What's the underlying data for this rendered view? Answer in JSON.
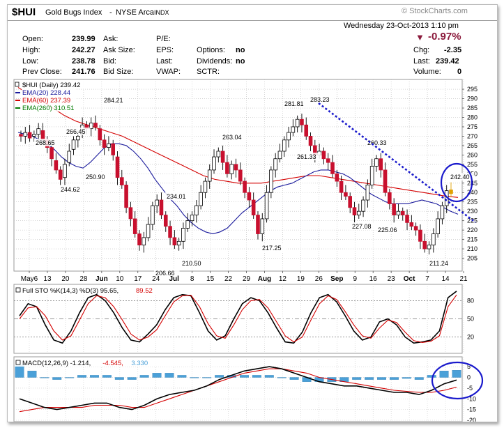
{
  "header": {
    "symbol": "$HUI",
    "name": "Gold Bugs Index",
    "exchange": "NYSE Arca",
    "type": "INDX",
    "watermark": "© StockCharts.com",
    "datetime": "Wednesday  23-Oct-2013  1:10 pm",
    "change_pct": "-0.97%",
    "quote": {
      "open_label": "Open:",
      "open": "239.99",
      "high_label": "High:",
      "high": "242.27",
      "low_label": "Low:",
      "low": "238.78",
      "prev_label": "Prev Close:",
      "prev": "241.76",
      "ask_label": "Ask:",
      "asksize_label": "Ask Size:",
      "bid_label": "Bid:",
      "bidsize_label": "Bid Size:",
      "pe_label": "P/E:",
      "eps_label": "EPS:",
      "last_label": "Last:",
      "vwap_label": "VWAP:",
      "options_label": "Options:",
      "options": "no",
      "dividends_label": "Dividends:",
      "dividends": "no",
      "sctr_label": "SCTR:",
      "chg_label": "Chg:",
      "chg": "-2.35",
      "last2_label": "Last:",
      "last2": "239.42",
      "volume_label": "Volume:",
      "volume": "0"
    },
    "colors": {
      "down": "#8b1a3c",
      "red": "#d40000",
      "blue": "#1a1a9c",
      "green": "#007a00",
      "grey": "#555555"
    }
  },
  "chart_data": [
    {
      "type": "candlestick",
      "legend": [
        {
          "text": "$HUI (Daily) 239.42",
          "color": "#000000"
        },
        {
          "text": "EMA(20) 228.44",
          "color": "#1a1a9c"
        },
        {
          "text": "EMA(60) 237.39",
          "color": "#d40000"
        },
        {
          "text": "EMA(260) 310.51",
          "color": "#007a00"
        }
      ],
      "ylim": [
        200,
        298
      ],
      "yticks": [
        205,
        210,
        215,
        220,
        225,
        230,
        235,
        240,
        245,
        250,
        255,
        260,
        265,
        270,
        275,
        280,
        285,
        290,
        295
      ],
      "xticks": [
        "May6",
        "13",
        "20",
        "28",
        "Jun",
        "10",
        "17",
        "24",
        "Jul",
        "8",
        "15",
        "22",
        "29",
        "Aug",
        "12",
        "19",
        "26",
        "Sep",
        "9",
        "16",
        "23",
        "Oct",
        "7",
        "14",
        "21"
      ],
      "xtick_bold": [
        "Jun",
        "Jul",
        "Aug",
        "Sep",
        "Oct"
      ],
      "close": [
        270,
        272,
        269,
        271,
        274,
        268,
        264,
        258,
        252,
        247,
        255,
        262,
        268,
        270,
        276,
        274,
        277,
        275,
        268,
        264,
        266,
        260,
        248,
        244,
        232,
        226,
        218,
        212,
        216,
        223,
        233,
        236,
        228,
        222,
        216,
        212,
        214,
        221,
        225,
        228,
        233,
        240,
        246,
        252,
        259,
        262,
        256,
        250,
        255,
        252,
        246,
        240,
        236,
        228,
        218,
        226,
        240,
        252,
        258,
        262,
        268,
        272,
        275,
        279,
        276,
        270,
        265,
        260,
        262,
        258,
        256,
        250,
        246,
        240,
        238,
        232,
        228,
        230,
        236,
        244,
        254,
        258,
        252,
        240,
        234,
        228,
        230,
        228,
        224,
        222,
        220,
        214,
        210,
        212,
        218,
        226,
        233,
        241,
        239.42
      ],
      "open_delta": [
        -1,
        2,
        -3,
        1,
        3,
        -5,
        -4,
        -6,
        -5,
        -5,
        7,
        6,
        5,
        2,
        5,
        -2,
        3,
        -2,
        -6,
        -4,
        2,
        -6,
        -11,
        -4,
        -12,
        -6,
        -8,
        -6,
        4,
        7,
        10,
        3,
        -8,
        -6,
        -6,
        -4,
        2,
        7,
        4,
        3,
        5,
        7,
        6,
        6,
        7,
        3,
        -6,
        -6,
        5,
        -3,
        -6,
        -6,
        -4,
        -8,
        -10,
        8,
        14,
        12,
        6,
        4,
        6,
        4,
        3,
        4,
        -3,
        -6,
        -5,
        -5,
        2,
        -4,
        -2,
        -6,
        -4,
        -6,
        -2,
        -6,
        -4,
        2,
        6,
        8,
        10,
        4,
        -6,
        -12,
        -6,
        -6,
        2,
        -2,
        -4,
        -2,
        -2,
        -6,
        -4,
        2,
        6,
        8,
        7,
        8,
        -2
      ],
      "ema20": [
        272,
        271,
        270,
        268,
        266,
        263,
        259,
        256,
        254,
        253,
        256,
        260,
        264,
        266,
        266,
        265,
        262,
        258,
        253,
        247,
        242,
        237,
        233,
        228,
        224,
        221,
        219,
        218,
        219,
        221,
        225,
        229,
        232,
        235,
        238,
        241,
        243,
        244,
        245,
        247,
        249,
        251,
        252,
        252,
        251,
        250,
        248,
        245,
        242,
        239,
        237,
        235,
        234,
        234,
        234,
        235,
        236,
        235,
        234,
        232,
        230,
        228.44
      ],
      "ema60": [
        296,
        292,
        289,
        285,
        281,
        278,
        276,
        274,
        272,
        270,
        267,
        264,
        261,
        258,
        255,
        252,
        249,
        247,
        246,
        245,
        245,
        245,
        246,
        247,
        248,
        249,
        249,
        248,
        247,
        246,
        245,
        244,
        243,
        242,
        241,
        240,
        239,
        238,
        237.39
      ],
      "annotations": [
        "284.21",
        "266.45",
        "268.65",
        "250.90",
        "244.62",
        "234.01",
        "206.66",
        "210.50",
        "263.04",
        "281.81",
        "283.23",
        "261.33",
        "217.25",
        "260.33",
        "227.08",
        "225.06",
        "211.24",
        "242.40"
      ]
    },
    {
      "type": "line",
      "title": "Full STO %K(14,3) %D(3) 95.65, 89.52",
      "legend": [
        {
          "text": "Full STO %K(14,3) %D(3) 95.65,",
          "color": "#000000"
        },
        {
          "text": "89.52",
          "color": "#d40000"
        }
      ],
      "ylim": [
        0,
        100
      ],
      "yticks": [
        20,
        50,
        80
      ],
      "series": [
        {
          "name": "%K",
          "color": "#000000",
          "values": [
            55,
            75,
            70,
            40,
            15,
            10,
            30,
            60,
            85,
            90,
            80,
            60,
            35,
            15,
            12,
            25,
            40,
            65,
            85,
            90,
            88,
            60,
            30,
            15,
            22,
            50,
            75,
            85,
            80,
            60,
            35,
            12,
            10,
            28,
            60,
            85,
            90,
            78,
            55,
            30,
            15,
            20,
            45,
            50,
            40,
            20,
            10,
            12,
            15,
            30,
            85,
            95.65
          ]
        },
        {
          "name": "%D",
          "color": "#d40000",
          "values": [
            50,
            68,
            70,
            55,
            30,
            15,
            22,
            48,
            75,
            88,
            85,
            70,
            48,
            25,
            15,
            20,
            32,
            55,
            78,
            88,
            89,
            70,
            42,
            22,
            18,
            40,
            65,
            80,
            82,
            68,
            45,
            22,
            12,
            20,
            48,
            75,
            88,
            82,
            62,
            40,
            22,
            18,
            35,
            48,
            44,
            28,
            14,
            11,
            13,
            22,
            70,
            89.52
          ]
        }
      ]
    },
    {
      "type": "line",
      "legend": [
        {
          "text": "MACD(12,26,9) -1.214,",
          "color": "#000000"
        },
        {
          "text": "-4.545,",
          "color": "#d40000"
        },
        {
          "text": "3.330",
          "color": "#4aa0d8"
        }
      ],
      "ylim": [
        -20,
        7
      ],
      "yticks": [
        5,
        0,
        -5,
        -10,
        -15,
        -20
      ],
      "series": [
        {
          "name": "MACD",
          "color": "#000000",
          "values": [
            -10,
            -12,
            -14,
            -15,
            -14,
            -13,
            -12,
            -12,
            -14,
            -15,
            -13,
            -10,
            -8,
            -7,
            -6,
            -4,
            -1,
            1,
            3,
            4,
            5,
            4,
            2,
            0,
            -2,
            -3,
            -4,
            -4,
            -5,
            -6,
            -7,
            -7,
            -8,
            -6,
            -3,
            -1.214
          ]
        },
        {
          "name": "Signal",
          "color": "#d40000",
          "values": [
            -16,
            -15,
            -14,
            -14,
            -14,
            -14,
            -13,
            -13,
            -13,
            -14,
            -14,
            -12,
            -10,
            -8,
            -6,
            -4,
            -2,
            0,
            2,
            3,
            4,
            4,
            3,
            2,
            0,
            -1,
            -2,
            -3,
            -4,
            -5,
            -6,
            -6.5,
            -7,
            -7,
            -6,
            -4.545
          ]
        },
        {
          "name": "Histogram",
          "color": "#4aa0d8",
          "values": [
            6,
            3,
            0,
            -1,
            0,
            1,
            1,
            1,
            -1,
            -1,
            1,
            2,
            2,
            1,
            0,
            0,
            1,
            1,
            1,
            1,
            1,
            0,
            -1,
            -2,
            -2,
            -2,
            -2,
            -1,
            -1,
            -1,
            -1,
            -0.5,
            -1,
            1,
            3,
            3.33
          ]
        }
      ]
    }
  ]
}
